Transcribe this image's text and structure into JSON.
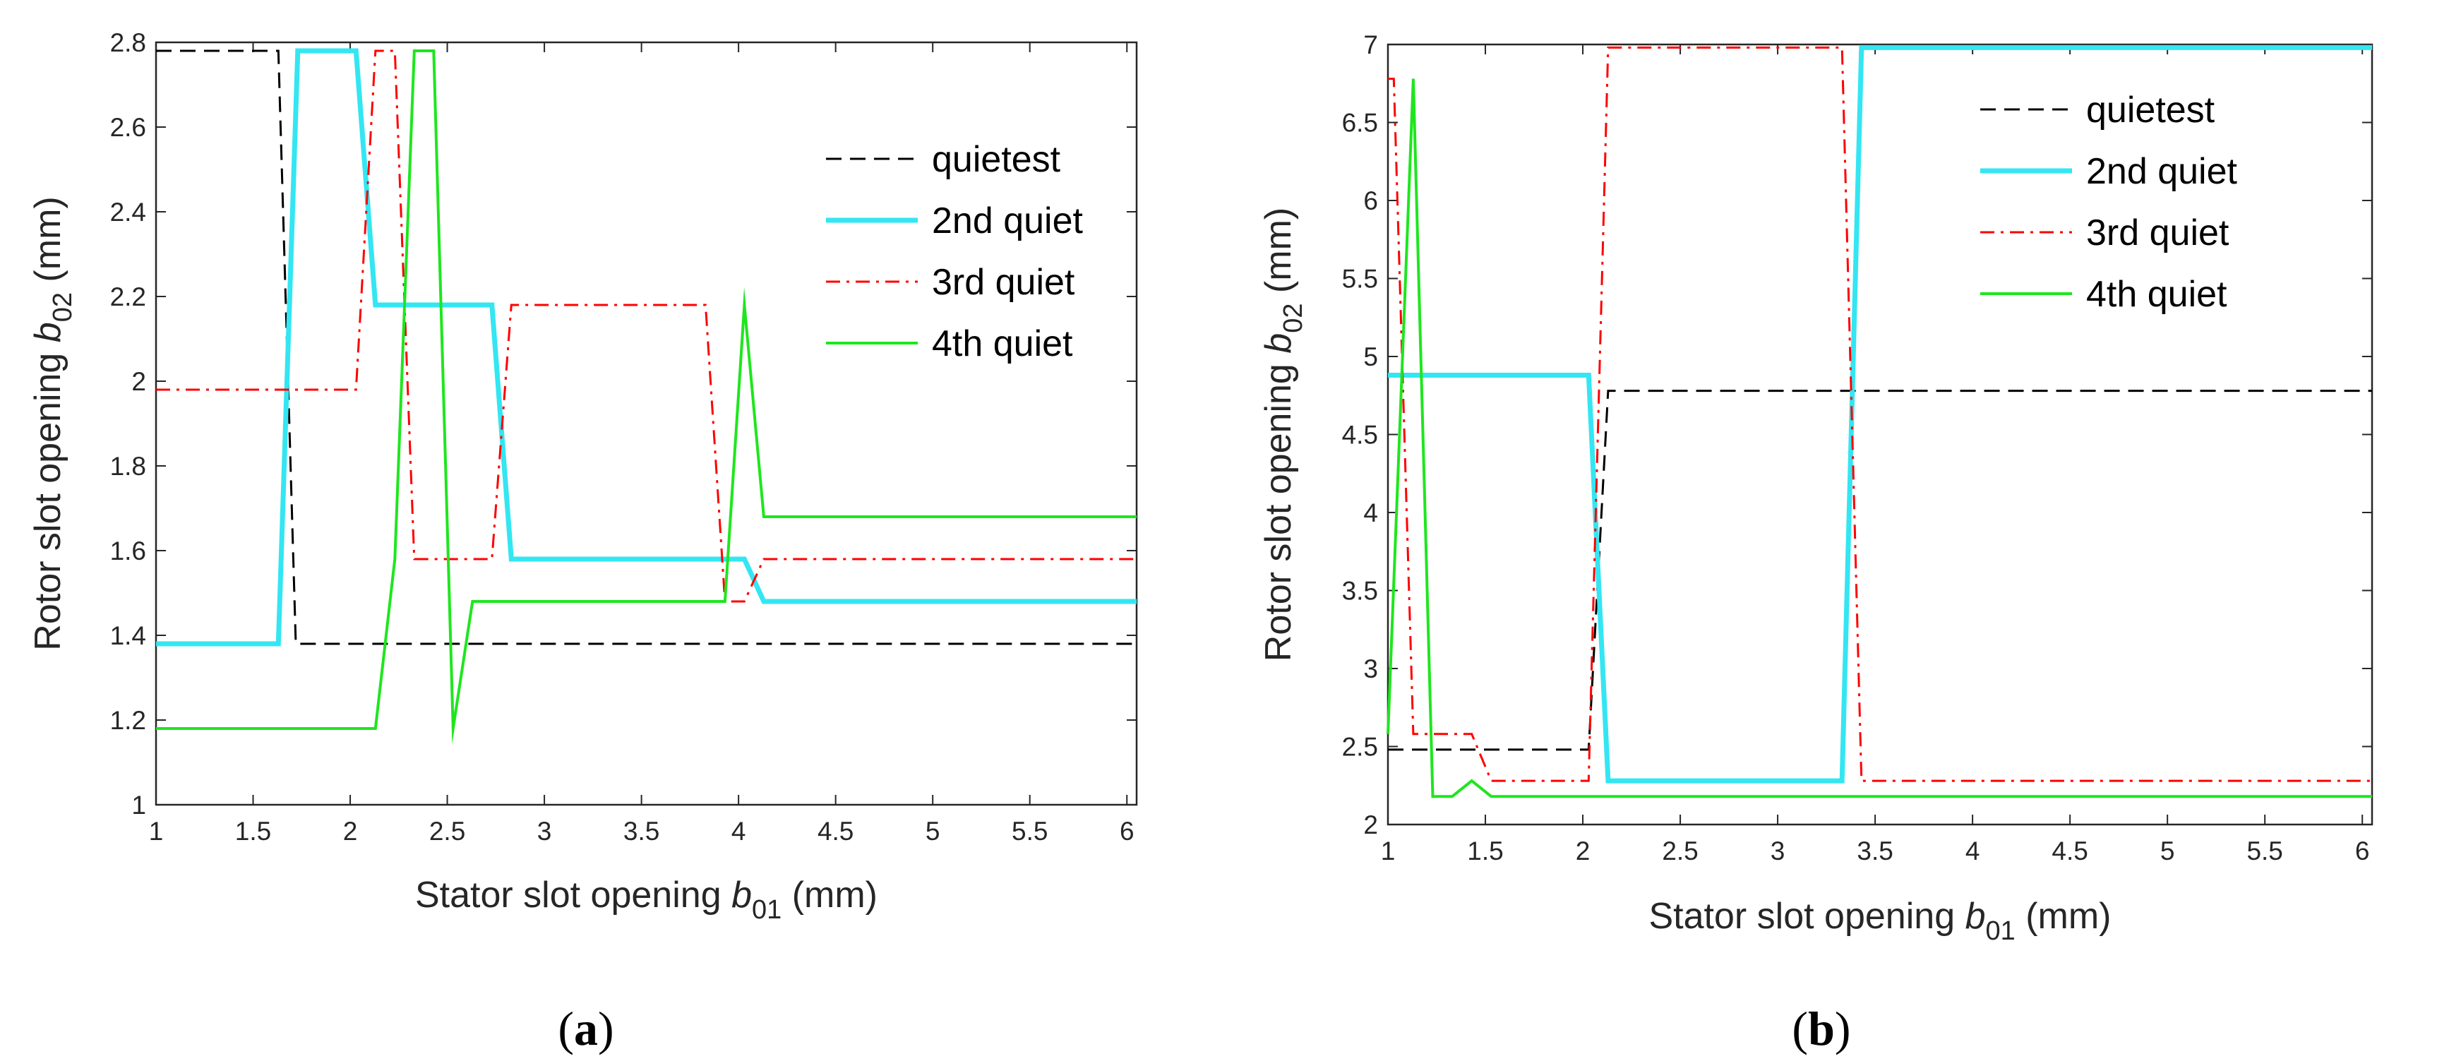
{
  "chart_data": [
    {
      "type": "line",
      "panel_label": {
        "open": "(",
        "letter": "a",
        "close": ")"
      },
      "xlabel": {
        "prefix": "Stator slot opening ",
        "var": "b",
        "sub": "01",
        "suffix": " (mm)"
      },
      "ylabel": {
        "prefix": "Rotor slot opening ",
        "var": "b",
        "sub": "02",
        "suffix": " (mm)"
      },
      "xlim": [
        1,
        6.05
      ],
      "ylim": [
        1,
        2.8
      ],
      "xticks": [
        1,
        1.5,
        2,
        2.5,
        3,
        3.5,
        4,
        4.5,
        5,
        5.5,
        6
      ],
      "xtick_labels": [
        "1",
        "1.5",
        "2",
        "2.5",
        "3",
        "3.5",
        "4",
        "4.5",
        "5",
        "5.5",
        "6"
      ],
      "yticks": [
        1,
        1.2,
        1.4,
        1.6,
        1.8,
        2,
        2.2,
        2.4,
        2.6,
        2.8
      ],
      "ytick_labels": [
        "1",
        "1.2",
        "1.4",
        "1.6",
        "1.8",
        "2",
        "2.2",
        "2.4",
        "2.6",
        "2.8"
      ],
      "legend_position": "right-middle",
      "series": [
        {
          "name": "quietest",
          "color": "#000000",
          "style": "dashed",
          "width": 3,
          "x": [
            1,
            1.63,
            1.72,
            6.05
          ],
          "y": [
            2.78,
            2.78,
            1.38,
            1.38
          ]
        },
        {
          "name": "2nd quiet",
          "color": "#33e6f2",
          "style": "solid",
          "width": 7,
          "x": [
            1,
            1.63,
            1.73,
            2.03,
            2.13,
            2.73,
            2.83,
            4.03,
            4.13,
            6.05
          ],
          "y": [
            1.38,
            1.38,
            2.78,
            2.78,
            2.18,
            2.18,
            1.58,
            1.58,
            1.48,
            1.48
          ]
        },
        {
          "name": "3rd quiet",
          "color": "#ff0000",
          "style": "dashdot",
          "width": 3,
          "x": [
            1,
            2.03,
            2.13,
            2.23,
            2.33,
            2.73,
            2.83,
            3.83,
            3.93,
            4.03,
            4.13,
            6.05
          ],
          "y": [
            1.98,
            1.98,
            2.78,
            2.78,
            1.58,
            1.58,
            2.18,
            2.18,
            1.48,
            1.48,
            1.58,
            1.58
          ]
        },
        {
          "name": "4th quiet",
          "color": "#1ee61e",
          "style": "solid",
          "width": 4,
          "x": [
            1,
            2.13,
            2.23,
            2.33,
            2.43,
            2.53,
            2.63,
            3.93,
            4.03,
            4.13,
            6.05
          ],
          "y": [
            1.18,
            1.18,
            1.58,
            2.78,
            2.78,
            1.18,
            1.48,
            1.48,
            2.18,
            1.68,
            1.68
          ]
        }
      ]
    },
    {
      "type": "line",
      "panel_label": {
        "open": "(",
        "letter": "b",
        "close": ")"
      },
      "xlabel": {
        "prefix": "Stator slot opening ",
        "var": "b",
        "sub": "01",
        "suffix": " (mm)"
      },
      "ylabel": {
        "prefix": "Rotor slot opening ",
        "var": "b",
        "sub": "02",
        "suffix": " (mm)"
      },
      "xlim": [
        1,
        6.05
      ],
      "ylim": [
        2,
        7
      ],
      "xticks": [
        1,
        1.5,
        2,
        2.5,
        3,
        3.5,
        4,
        4.5,
        5,
        5.5,
        6
      ],
      "xtick_labels": [
        "1",
        "1.5",
        "2",
        "2.5",
        "3",
        "3.5",
        "4",
        "4.5",
        "5",
        "5.5",
        "6"
      ],
      "yticks": [
        2,
        2.5,
        3,
        3.5,
        4,
        4.5,
        5,
        5.5,
        6,
        6.5,
        7
      ],
      "ytick_labels": [
        "2",
        "2.5",
        "3",
        "3.5",
        "4",
        "4.5",
        "5",
        "5.5",
        "6",
        "6.5",
        "7"
      ],
      "legend_position": "top-right",
      "series": [
        {
          "name": "quietest",
          "color": "#000000",
          "style": "dashed",
          "width": 3,
          "x": [
            1,
            2.03,
            2.13,
            6.05
          ],
          "y": [
            2.48,
            2.48,
            4.78,
            4.78
          ]
        },
        {
          "name": "2nd quiet",
          "color": "#33e6f2",
          "style": "solid",
          "width": 7,
          "x": [
            1,
            2.03,
            2.13,
            3.33,
            3.43,
            6.05
          ],
          "y": [
            4.88,
            4.88,
            2.28,
            2.28,
            6.98,
            6.98
          ]
        },
        {
          "name": "3rd quiet",
          "color": "#ff0000",
          "style": "dashdot",
          "width": 3,
          "x": [
            1,
            1.03,
            1.13,
            1.43,
            1.53,
            2.03,
            2.13,
            3.33,
            3.43,
            6.05
          ],
          "y": [
            6.78,
            6.78,
            2.58,
            2.58,
            2.28,
            2.28,
            6.98,
            6.98,
            2.28,
            2.28
          ]
        },
        {
          "name": "4th quiet",
          "color": "#1ee61e",
          "style": "solid",
          "width": 4,
          "x": [
            1,
            1.13,
            1.23,
            1.33,
            1.43,
            1.53,
            6.05
          ],
          "y": [
            2.58,
            6.78,
            2.18,
            2.18,
            2.28,
            2.18,
            2.18
          ]
        }
      ]
    }
  ]
}
